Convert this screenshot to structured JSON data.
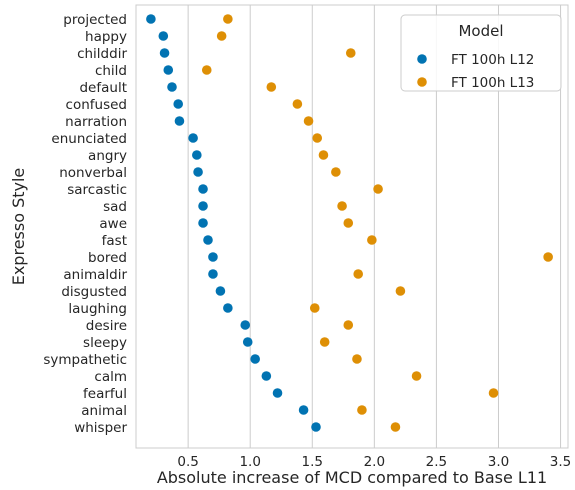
{
  "chart_data": {
    "type": "scatter",
    "orientation": "horizontal-dot",
    "title": "",
    "xlabel": "Absolute increase of MCD compared to Base L11",
    "ylabel": "Expresso Style",
    "xlim": [
      0.08,
      3.56
    ],
    "xticks": [
      0.5,
      1.0,
      1.5,
      2.0,
      2.5,
      3.0,
      3.5
    ],
    "xtick_labels": [
      "0.5",
      "1.0",
      "1.5",
      "2.0",
      "2.5",
      "3.0",
      "3.5"
    ],
    "grid": "vertical",
    "legend": {
      "title": "Model",
      "placement": "top-right"
    },
    "categories": [
      "projected",
      "happy",
      "childdir",
      "child",
      "default",
      "confused",
      "narration",
      "enunciated",
      "angry",
      "nonverbal",
      "sarcastic",
      "sad",
      "awe",
      "fast",
      "bored",
      "animaldir",
      "disgusted",
      "laughing",
      "desire",
      "sleepy",
      "sympathetic",
      "calm",
      "fearful",
      "animal",
      "whisper"
    ],
    "series": [
      {
        "name": "FT 100h L12",
        "color": "#0173b2",
        "values": [
          0.2,
          0.3,
          0.31,
          0.34,
          0.37,
          0.42,
          0.43,
          0.54,
          0.57,
          0.58,
          0.62,
          0.62,
          0.62,
          0.66,
          0.7,
          0.7,
          0.76,
          0.82,
          0.96,
          0.98,
          1.04,
          1.13,
          1.22,
          1.43,
          1.53
        ]
      },
      {
        "name": "FT 100h L13",
        "color": "#de8f05",
        "values": [
          0.82,
          0.77,
          1.81,
          0.65,
          1.17,
          1.38,
          1.47,
          1.54,
          1.59,
          1.69,
          2.03,
          1.74,
          1.79,
          1.98,
          3.4,
          1.87,
          2.21,
          1.52,
          1.79,
          1.6,
          1.86,
          2.34,
          2.96,
          1.9,
          2.17
        ]
      }
    ]
  }
}
